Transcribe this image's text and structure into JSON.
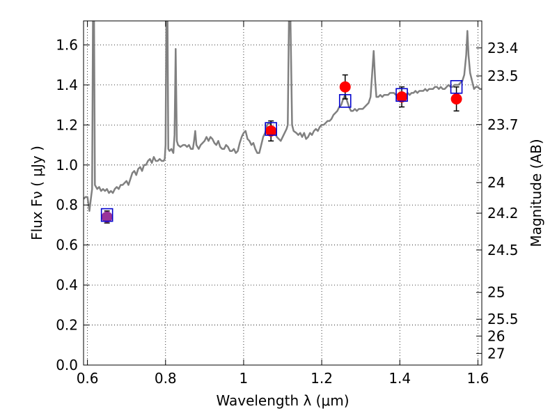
{
  "chart_data": {
    "type": "line",
    "xlabel": "Wavelength  λ (μm)",
    "ylabel_left": "Flux  Fν  ( μJy )",
    "ylabel_right": "Magnitude (AB)",
    "xlim": [
      0.59,
      1.61
    ],
    "ylim": [
      0.0,
      1.72
    ],
    "grid": true,
    "x_ticks": [
      {
        "v": 0.6,
        "label": "0.6"
      },
      {
        "v": 0.8,
        "label": "0.8"
      },
      {
        "v": 1.0,
        "label": "1"
      },
      {
        "v": 1.2,
        "label": "1.2"
      },
      {
        "v": 1.4,
        "label": "1.4"
      },
      {
        "v": 1.6,
        "label": "1.6"
      }
    ],
    "y_ticks": [
      {
        "v": 0.0,
        "label": "0.0"
      },
      {
        "v": 0.2,
        "label": "0.2"
      },
      {
        "v": 0.4,
        "label": "0.4"
      },
      {
        "v": 0.6,
        "label": "0.6"
      },
      {
        "v": 0.8,
        "label": "0.8"
      },
      {
        "v": 1.0,
        "label": "1.0"
      },
      {
        "v": 1.2,
        "label": "1.2"
      },
      {
        "v": 1.4,
        "label": "1.4"
      },
      {
        "v": 1.6,
        "label": "1.6"
      }
    ],
    "right_ticks": [
      {
        "flux": 1.585,
        "label": "23.4"
      },
      {
        "flux": 1.445,
        "label": "23.5"
      },
      {
        "flux": 1.202,
        "label": "23.7"
      },
      {
        "flux": 0.912,
        "label": "24"
      },
      {
        "flux": 0.759,
        "label": "24.2"
      },
      {
        "flux": 0.575,
        "label": "24.5"
      },
      {
        "flux": 0.363,
        "label": "25"
      },
      {
        "flux": 0.229,
        "label": "25.5"
      },
      {
        "flux": 0.145,
        "label": "26"
      },
      {
        "flux": 0.058,
        "label": "27"
      }
    ],
    "model_spectrum": {
      "color": "#808080",
      "points": [
        [
          0.59,
          0.83
        ],
        [
          0.595,
          0.84
        ],
        [
          0.6,
          0.84
        ],
        [
          0.605,
          0.77
        ],
        [
          0.61,
          0.85
        ],
        [
          0.612,
          0.88
        ],
        [
          0.614,
          1.72
        ],
        [
          0.617,
          1.72
        ],
        [
          0.619,
          0.9
        ],
        [
          0.625,
          0.88
        ],
        [
          0.63,
          0.89
        ],
        [
          0.635,
          0.87
        ],
        [
          0.64,
          0.88
        ],
        [
          0.645,
          0.87
        ],
        [
          0.65,
          0.88
        ],
        [
          0.655,
          0.86
        ],
        [
          0.66,
          0.87
        ],
        [
          0.665,
          0.86
        ],
        [
          0.67,
          0.88
        ],
        [
          0.675,
          0.89
        ],
        [
          0.68,
          0.88
        ],
        [
          0.685,
          0.9
        ],
        [
          0.69,
          0.9
        ],
        [
          0.695,
          0.91
        ],
        [
          0.7,
          0.92
        ],
        [
          0.705,
          0.9
        ],
        [
          0.71,
          0.93
        ],
        [
          0.715,
          0.96
        ],
        [
          0.72,
          0.97
        ],
        [
          0.725,
          0.95
        ],
        [
          0.73,
          0.98
        ],
        [
          0.735,
          0.99
        ],
        [
          0.74,
          0.97
        ],
        [
          0.745,
          1.0
        ],
        [
          0.75,
          1.0
        ],
        [
          0.755,
          1.02
        ],
        [
          0.76,
          1.03
        ],
        [
          0.765,
          1.01
        ],
        [
          0.77,
          1.04
        ],
        [
          0.775,
          1.02
        ],
        [
          0.78,
          1.02
        ],
        [
          0.785,
          1.03
        ],
        [
          0.79,
          1.02
        ],
        [
          0.795,
          1.02
        ],
        [
          0.798,
          1.03
        ],
        [
          0.8,
          1.1
        ],
        [
          0.802,
          1.72
        ],
        [
          0.805,
          1.72
        ],
        [
          0.807,
          1.08
        ],
        [
          0.81,
          1.07
        ],
        [
          0.815,
          1.08
        ],
        [
          0.82,
          1.06
        ],
        [
          0.823,
          1.15
        ],
        [
          0.826,
          1.58
        ],
        [
          0.829,
          1.12
        ],
        [
          0.832,
          1.1
        ],
        [
          0.838,
          1.09
        ],
        [
          0.845,
          1.1
        ],
        [
          0.85,
          1.1
        ],
        [
          0.855,
          1.09
        ],
        [
          0.86,
          1.1
        ],
        [
          0.865,
          1.08
        ],
        [
          0.87,
          1.08
        ],
        [
          0.873,
          1.12
        ],
        [
          0.876,
          1.17
        ],
        [
          0.879,
          1.1
        ],
        [
          0.885,
          1.08
        ],
        [
          0.89,
          1.1
        ],
        [
          0.895,
          1.11
        ],
        [
          0.9,
          1.12
        ],
        [
          0.905,
          1.14
        ],
        [
          0.91,
          1.12
        ],
        [
          0.915,
          1.14
        ],
        [
          0.92,
          1.13
        ],
        [
          0.925,
          1.11
        ],
        [
          0.93,
          1.1
        ],
        [
          0.935,
          1.12
        ],
        [
          0.94,
          1.09
        ],
        [
          0.945,
          1.08
        ],
        [
          0.95,
          1.08
        ],
        [
          0.955,
          1.1
        ],
        [
          0.96,
          1.09
        ],
        [
          0.965,
          1.07
        ],
        [
          0.97,
          1.07
        ],
        [
          0.975,
          1.08
        ],
        [
          0.98,
          1.06
        ],
        [
          0.985,
          1.07
        ],
        [
          0.99,
          1.11
        ],
        [
          0.995,
          1.14
        ],
        [
          1.0,
          1.16
        ],
        [
          1.005,
          1.17
        ],
        [
          1.01,
          1.13
        ],
        [
          1.015,
          1.12
        ],
        [
          1.02,
          1.1
        ],
        [
          1.025,
          1.11
        ],
        [
          1.03,
          1.08
        ],
        [
          1.035,
          1.06
        ],
        [
          1.04,
          1.06
        ],
        [
          1.045,
          1.1
        ],
        [
          1.05,
          1.14
        ],
        [
          1.055,
          1.16
        ],
        [
          1.06,
          1.2
        ],
        [
          1.065,
          1.21
        ],
        [
          1.07,
          1.2
        ],
        [
          1.075,
          1.18
        ],
        [
          1.08,
          1.16
        ],
        [
          1.085,
          1.14
        ],
        [
          1.09,
          1.13
        ],
        [
          1.095,
          1.12
        ],
        [
          1.1,
          1.14
        ],
        [
          1.105,
          1.16
        ],
        [
          1.11,
          1.18
        ],
        [
          1.113,
          1.2
        ],
        [
          1.116,
          1.72
        ],
        [
          1.12,
          1.72
        ],
        [
          1.124,
          1.2
        ],
        [
          1.128,
          1.17
        ],
        [
          1.135,
          1.16
        ],
        [
          1.14,
          1.15
        ],
        [
          1.145,
          1.16
        ],
        [
          1.15,
          1.14
        ],
        [
          1.155,
          1.16
        ],
        [
          1.16,
          1.13
        ],
        [
          1.165,
          1.14
        ],
        [
          1.17,
          1.16
        ],
        [
          1.175,
          1.15
        ],
        [
          1.18,
          1.17
        ],
        [
          1.185,
          1.18
        ],
        [
          1.19,
          1.17
        ],
        [
          1.195,
          1.19
        ],
        [
          1.2,
          1.2
        ],
        [
          1.205,
          1.2
        ],
        [
          1.21,
          1.21
        ],
        [
          1.215,
          1.22
        ],
        [
          1.22,
          1.22
        ],
        [
          1.225,
          1.23
        ],
        [
          1.23,
          1.25
        ],
        [
          1.235,
          1.26
        ],
        [
          1.24,
          1.27
        ],
        [
          1.245,
          1.29
        ],
        [
          1.25,
          1.3
        ],
        [
          1.255,
          1.33
        ],
        [
          1.26,
          1.35
        ],
        [
          1.265,
          1.32
        ],
        [
          1.27,
          1.29
        ],
        [
          1.275,
          1.27
        ],
        [
          1.28,
          1.27
        ],
        [
          1.285,
          1.28
        ],
        [
          1.29,
          1.27
        ],
        [
          1.295,
          1.28
        ],
        [
          1.3,
          1.28
        ],
        [
          1.305,
          1.28
        ],
        [
          1.31,
          1.29
        ],
        [
          1.315,
          1.3
        ],
        [
          1.32,
          1.31
        ],
        [
          1.325,
          1.34
        ],
        [
          1.329,
          1.45
        ],
        [
          1.333,
          1.57
        ],
        [
          1.337,
          1.42
        ],
        [
          1.34,
          1.34
        ],
        [
          1.345,
          1.34
        ],
        [
          1.35,
          1.35
        ],
        [
          1.355,
          1.34
        ],
        [
          1.36,
          1.35
        ],
        [
          1.365,
          1.35
        ],
        [
          1.37,
          1.35
        ],
        [
          1.375,
          1.36
        ],
        [
          1.38,
          1.36
        ],
        [
          1.385,
          1.36
        ],
        [
          1.39,
          1.35
        ],
        [
          1.395,
          1.35
        ],
        [
          1.4,
          1.35
        ],
        [
          1.405,
          1.34
        ],
        [
          1.41,
          1.35
        ],
        [
          1.415,
          1.35
        ],
        [
          1.42,
          1.36
        ],
        [
          1.425,
          1.35
        ],
        [
          1.43,
          1.36
        ],
        [
          1.435,
          1.36
        ],
        [
          1.44,
          1.37
        ],
        [
          1.445,
          1.36
        ],
        [
          1.45,
          1.37
        ],
        [
          1.455,
          1.37
        ],
        [
          1.46,
          1.37
        ],
        [
          1.465,
          1.38
        ],
        [
          1.47,
          1.37
        ],
        [
          1.475,
          1.38
        ],
        [
          1.48,
          1.38
        ],
        [
          1.485,
          1.38
        ],
        [
          1.49,
          1.39
        ],
        [
          1.495,
          1.39
        ],
        [
          1.5,
          1.38
        ],
        [
          1.505,
          1.39
        ],
        [
          1.51,
          1.38
        ],
        [
          1.515,
          1.38
        ],
        [
          1.52,
          1.39
        ],
        [
          1.525,
          1.4
        ],
        [
          1.53,
          1.39
        ],
        [
          1.535,
          1.39
        ],
        [
          1.54,
          1.4
        ],
        [
          1.545,
          1.4
        ],
        [
          1.55,
          1.4
        ],
        [
          1.555,
          1.41
        ],
        [
          1.56,
          1.42
        ],
        [
          1.565,
          1.45
        ],
        [
          1.57,
          1.55
        ],
        [
          1.573,
          1.67
        ],
        [
          1.576,
          1.55
        ],
        [
          1.58,
          1.46
        ],
        [
          1.585,
          1.42
        ],
        [
          1.59,
          1.38
        ],
        [
          1.595,
          1.39
        ],
        [
          1.6,
          1.39
        ],
        [
          1.605,
          1.38
        ],
        [
          1.61,
          1.38
        ]
      ]
    },
    "model_photometry": {
      "marker": "open-square",
      "color": "#0000cc",
      "points": [
        [
          0.65,
          0.75
        ],
        [
          1.07,
          1.18
        ],
        [
          1.26,
          1.32
        ],
        [
          1.405,
          1.35
        ],
        [
          1.545,
          1.39
        ]
      ]
    },
    "observed_photometry": {
      "marker": "filled-circle",
      "color": "#ff0000",
      "first_point_color": "#993399",
      "points": [
        {
          "x": 0.65,
          "y": 0.74,
          "err": 0.03
        },
        {
          "x": 1.07,
          "y": 1.17,
          "err": 0.05
        },
        {
          "x": 1.26,
          "y": 1.39,
          "err": 0.06
        },
        {
          "x": 1.405,
          "y": 1.34,
          "err": 0.05
        },
        {
          "x": 1.545,
          "y": 1.33,
          "err": 0.06
        }
      ]
    }
  }
}
